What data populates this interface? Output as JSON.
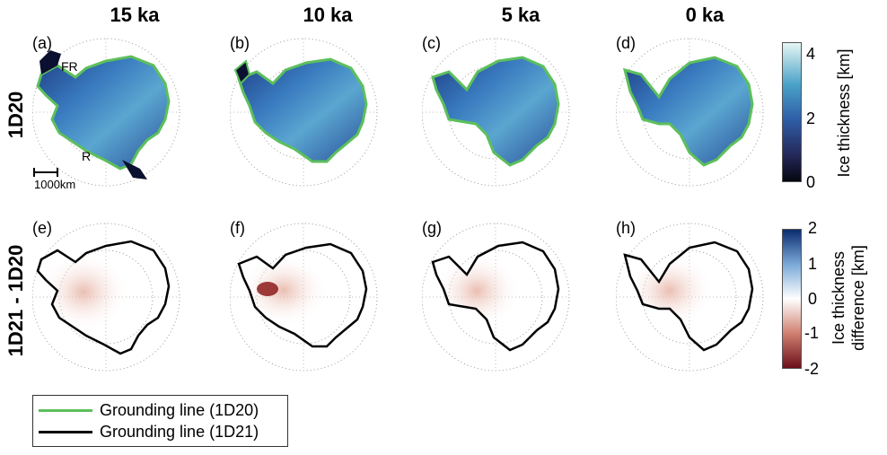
{
  "columns": [
    "15 ka",
    "10 ka",
    "5 ka",
    "0 ka"
  ],
  "rows": [
    "1D20",
    "1D21 - 1D20"
  ],
  "panel_labels": [
    "(a)",
    "(b)",
    "(c)",
    "(d)",
    "(e)",
    "(f)",
    "(g)",
    "(h)"
  ],
  "annotations": {
    "fr": "FR",
    "r": "R",
    "scale": "1000km"
  },
  "colorbar_thickness": {
    "title": "Ice thickness [km]",
    "ticks": [
      "4",
      "2",
      "0"
    ]
  },
  "colorbar_difference": {
    "title_line1": "Ice thickness",
    "title_line2": "difference [km]",
    "ticks": [
      "2",
      "1",
      "0",
      "-1",
      "-2"
    ]
  },
  "legend": [
    {
      "label": "Grounding line (1D20)",
      "color": "#5cbf5c"
    },
    {
      "label": "Grounding line (1D21)",
      "color": "#000000"
    }
  ],
  "colors": {
    "ice_dark": "#0b1030",
    "ice_mid": "#2b5ea8",
    "ice_light": "#7fd0d8",
    "grounding_1d20": "#5cbf5c",
    "grounding_1d21": "#000000",
    "diff_pos": "#1b3f8c",
    "diff_neg": "#8c1b1b"
  }
}
